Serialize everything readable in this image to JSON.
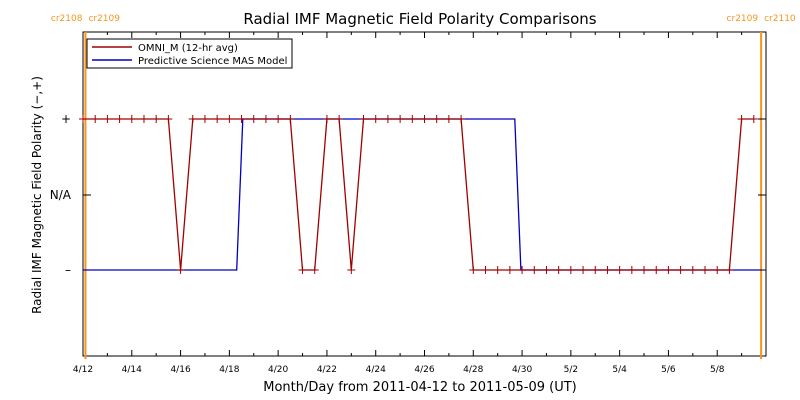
{
  "chart_data": {
    "type": "line",
    "title": "Radial IMF Magnetic Field Polarity Comparisons",
    "xlabel": "Month/Day from 2011-04-12 to 2011-05-09 (UT)",
    "ylabel": "Radial IMF Magnetic Field Polarity (−,+)",
    "x_range_days": [
      0,
      28
    ],
    "y_ticks": [
      {
        "label": "–",
        "value": -1
      },
      {
        "label": "N/A",
        "value": 0
      },
      {
        "label": "+",
        "value": 1
      }
    ],
    "x_ticks": [
      {
        "label": "4/12",
        "day": 0
      },
      {
        "label": "4/14",
        "day": 2
      },
      {
        "label": "4/16",
        "day": 4
      },
      {
        "label": "4/18",
        "day": 6
      },
      {
        "label": "4/20",
        "day": 8
      },
      {
        "label": "4/22",
        "day": 10
      },
      {
        "label": "4/24",
        "day": 12
      },
      {
        "label": "4/26",
        "day": 14
      },
      {
        "label": "4/28",
        "day": 16
      },
      {
        "label": "4/30",
        "day": 18
      },
      {
        "label": "5/2",
        "day": 20
      },
      {
        "label": "5/4",
        "day": 22
      },
      {
        "label": "5/6",
        "day": 24
      },
      {
        "label": "5/8",
        "day": 26
      }
    ],
    "carrington_markers": [
      {
        "day": 0.1,
        "label_left": "cr2108",
        "label_right": "cr2109"
      },
      {
        "day": 27.8,
        "label_left": "cr2109",
        "label_right": "cr2110"
      }
    ],
    "series": [
      {
        "name": "OMNI_M (12-hr avg)",
        "color": "#a00000",
        "marker": "plus",
        "x_days": [
          0,
          0.5,
          1,
          1.5,
          2,
          2.5,
          3,
          3.5,
          4,
          4.5,
          5,
          5.5,
          6,
          6.5,
          7,
          7.5,
          8,
          8.5,
          9,
          9.5,
          10,
          10.5,
          11,
          11.5,
          12,
          12.5,
          13,
          13.5,
          14,
          14.5,
          15,
          15.5,
          16,
          16.5,
          17,
          17.5,
          18,
          18.5,
          19,
          19.5,
          20,
          20.5,
          21,
          21.5,
          22,
          22.5,
          23,
          23.5,
          24,
          24.5,
          25,
          25.5,
          26,
          26.5,
          27,
          27.5
        ],
        "y": [
          1,
          1,
          1,
          1,
          1,
          1,
          1,
          1,
          -1,
          1,
          1,
          1,
          1,
          1,
          1,
          1,
          1,
          1,
          -1,
          -1,
          1,
          1,
          -1,
          1,
          1,
          1,
          1,
          1,
          1,
          1,
          1,
          1,
          -1,
          -1,
          -1,
          -1,
          -1,
          -1,
          -1,
          -1,
          -1,
          -1,
          -1,
          -1,
          -1,
          -1,
          -1,
          -1,
          -1,
          -1,
          -1,
          -1,
          -1,
          -1,
          1,
          1
        ]
      },
      {
        "name": "Predictive Science MAS Model",
        "color": "#0000c0",
        "marker": "none",
        "x_days": [
          0,
          6.3,
          6.55,
          17.7,
          17.95,
          27.8
        ],
        "y": [
          -1,
          -1,
          1,
          1,
          -1,
          -1
        ]
      }
    ],
    "grid": false,
    "legend_position": "top-left"
  }
}
